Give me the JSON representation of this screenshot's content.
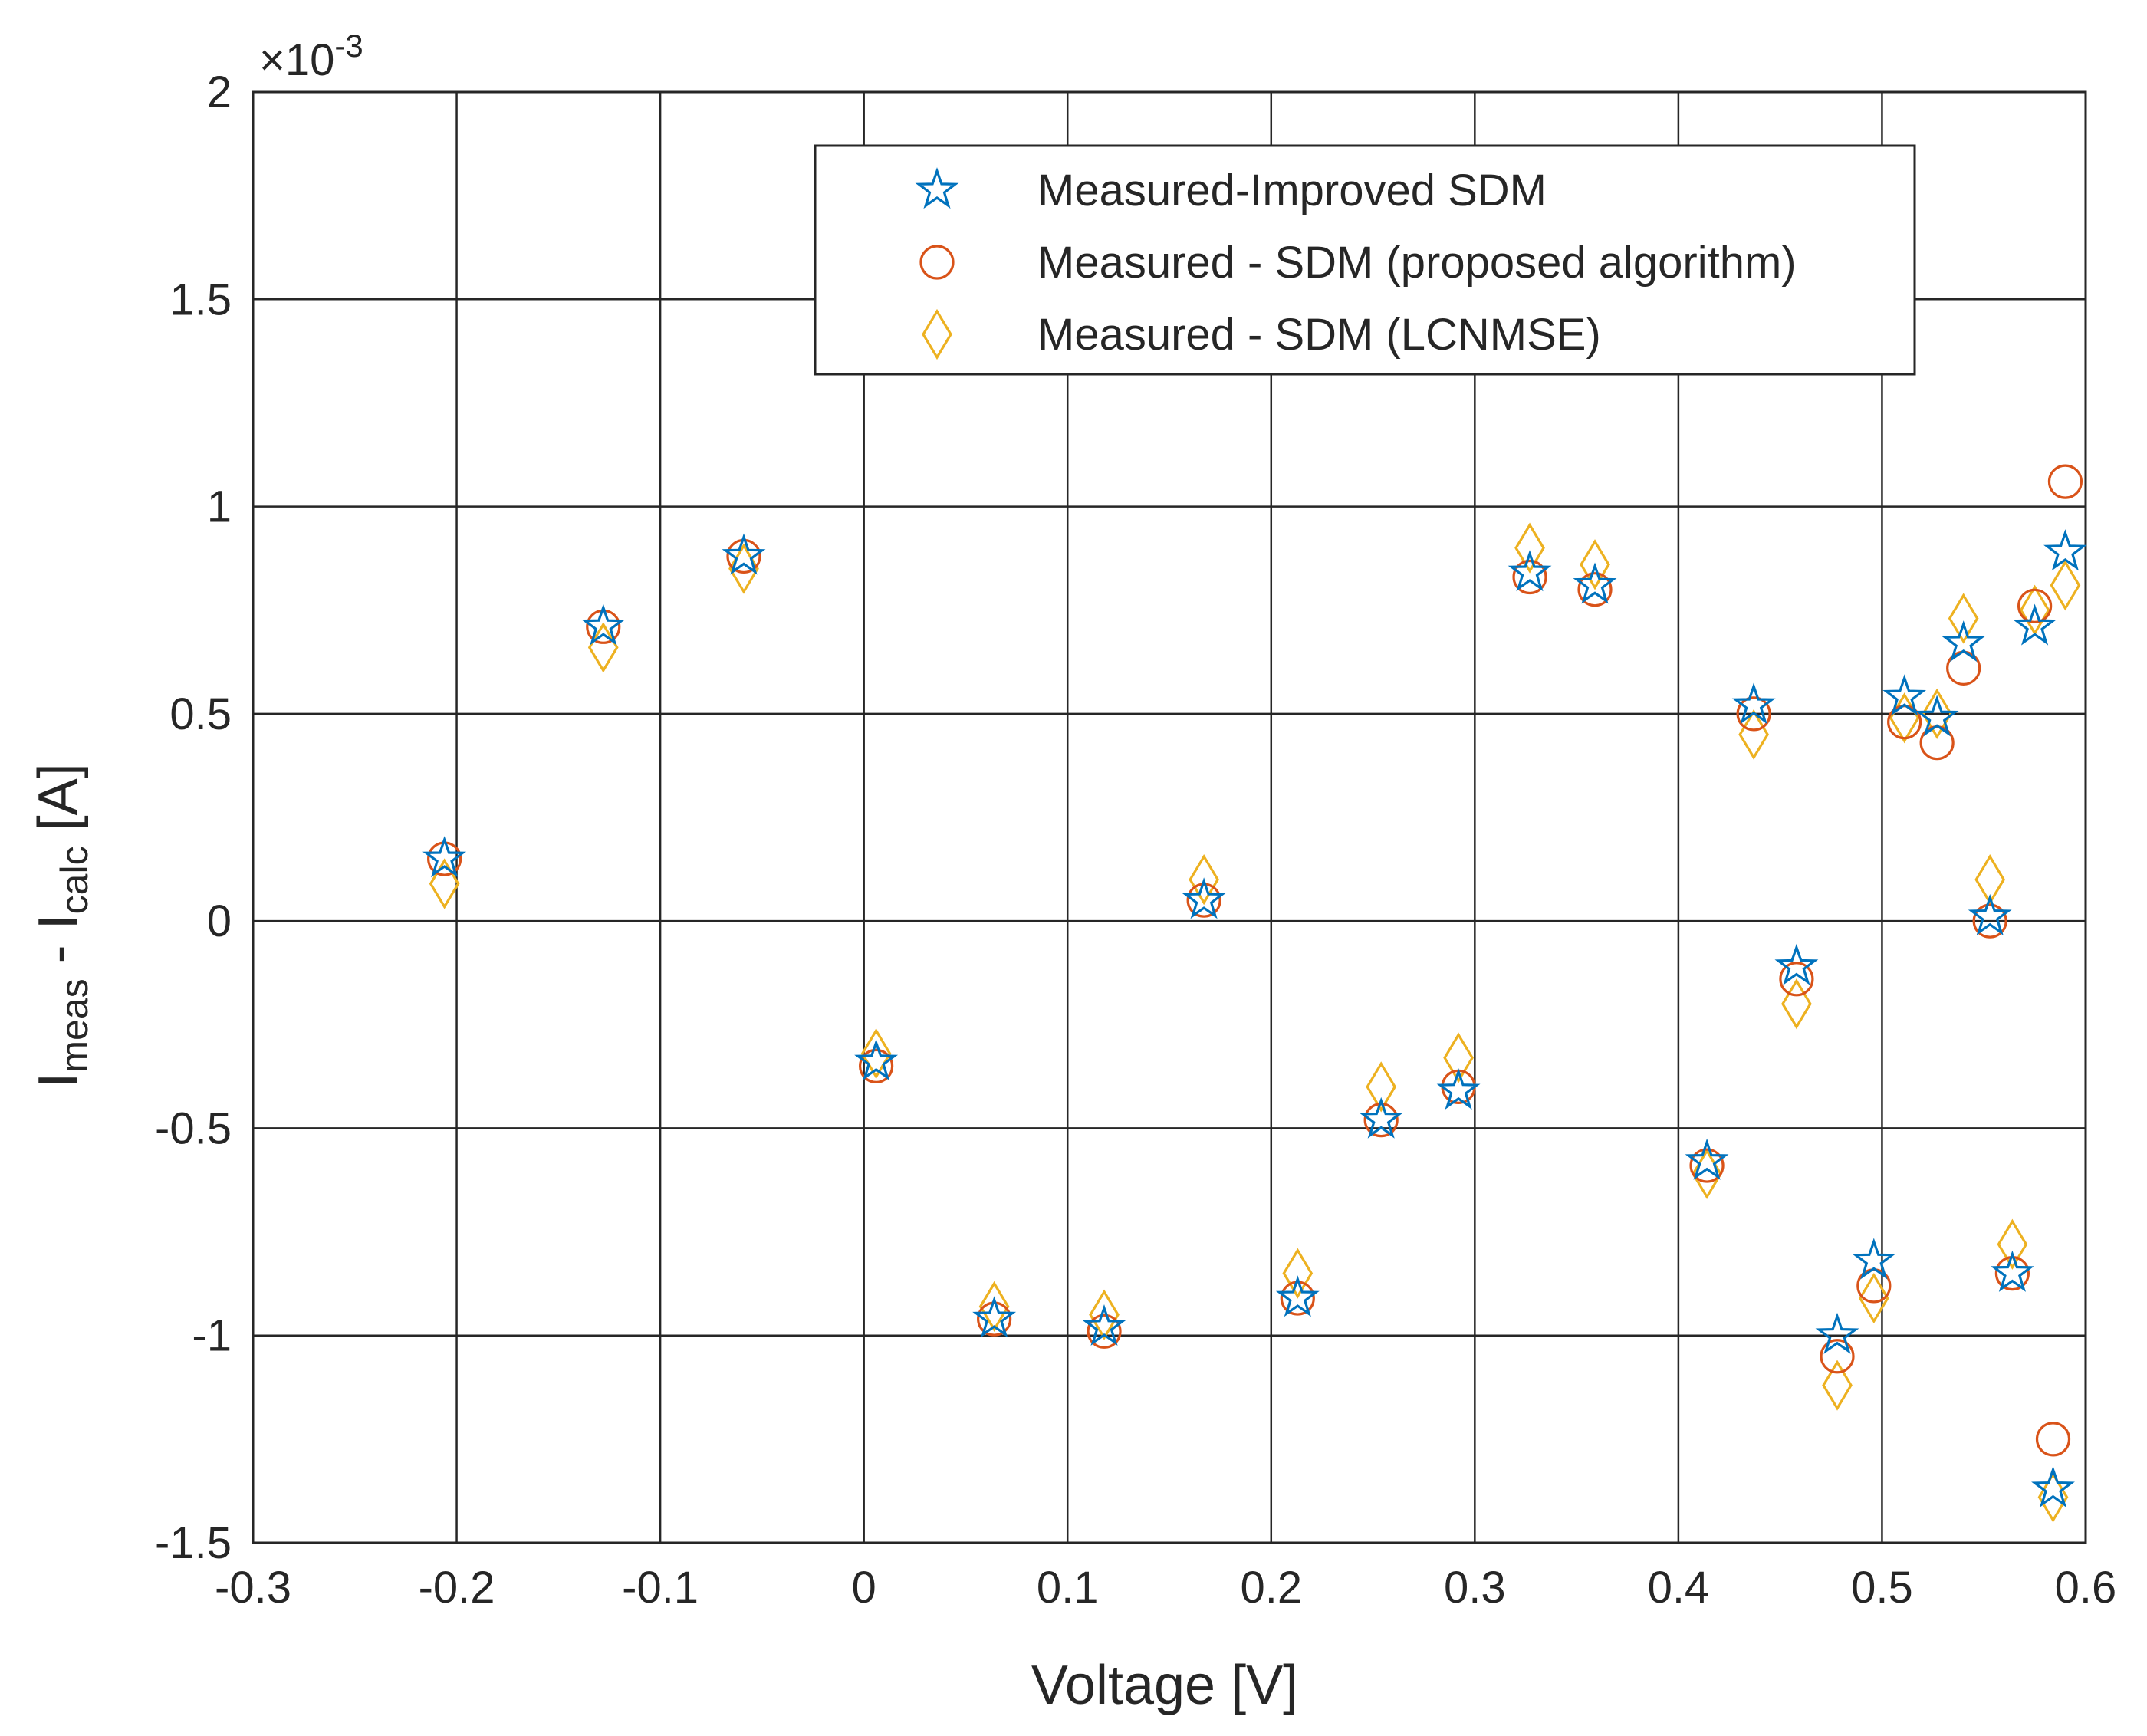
{
  "chart_data": {
    "type": "scatter",
    "title": "",
    "xlabel": "Voltage [V]",
    "ylabel": {
      "base": "I",
      "sub1": "meas",
      "mid": " - I",
      "sub2": "calc",
      "unit": " [A]"
    },
    "exponent_label": {
      "prefix": "×10",
      "power": "-3"
    },
    "xlim": [
      -0.3,
      0.6
    ],
    "ylim": [
      -1.5,
      2
    ],
    "x_ticks": [
      -0.3,
      -0.2,
      -0.1,
      0,
      0.1,
      0.2,
      0.3,
      0.4,
      0.5,
      0.6
    ],
    "x_tick_labels": [
      "-0.3",
      "-0.2",
      "-0.1",
      "0",
      "0.1",
      "0.2",
      "0.3",
      "0.4",
      "0.5",
      "0.6"
    ],
    "y_ticks": [
      -1.5,
      -1,
      -0.5,
      0,
      0.5,
      1,
      1.5,
      2
    ],
    "y_tick_labels": [
      "-1.5",
      "-1",
      "-0.5",
      "0",
      "0.5",
      "1",
      "1.5",
      "2"
    ],
    "grid": true,
    "legend_position": "top-right",
    "series": [
      {
        "name": "Measured-Improved SDM",
        "marker": "star",
        "color": "#0072BD",
        "points": [
          [
            -0.206,
            0.15
          ],
          [
            -0.128,
            0.71
          ],
          [
            -0.059,
            0.88
          ],
          [
            0.006,
            -0.34
          ],
          [
            0.064,
            -0.96
          ],
          [
            0.118,
            -0.98
          ],
          [
            0.167,
            0.05
          ],
          [
            0.213,
            -0.91
          ],
          [
            0.254,
            -0.48
          ],
          [
            0.292,
            -0.41
          ],
          [
            0.327,
            0.84
          ],
          [
            0.359,
            0.81
          ],
          [
            0.414,
            -0.58
          ],
          [
            0.437,
            0.52
          ],
          [
            0.458,
            -0.11
          ],
          [
            0.478,
            -1.0
          ],
          [
            0.496,
            -0.82
          ],
          [
            0.511,
            0.54
          ],
          [
            0.527,
            0.49
          ],
          [
            0.54,
            0.67
          ],
          [
            0.553,
            0.01
          ],
          [
            0.564,
            -0.85
          ],
          [
            0.575,
            0.71
          ],
          [
            0.584,
            -1.37
          ],
          [
            0.59,
            0.89
          ]
        ]
      },
      {
        "name": "Measured - SDM (proposed algorithm)",
        "marker": "circle",
        "color": "#D95319",
        "points": [
          [
            -0.206,
            0.15
          ],
          [
            -0.128,
            0.71
          ],
          [
            -0.059,
            0.88
          ],
          [
            0.006,
            -0.35
          ],
          [
            0.064,
            -0.96
          ],
          [
            0.118,
            -0.99
          ],
          [
            0.167,
            0.05
          ],
          [
            0.213,
            -0.91
          ],
          [
            0.254,
            -0.48
          ],
          [
            0.292,
            -0.4
          ],
          [
            0.327,
            0.83
          ],
          [
            0.359,
            0.8
          ],
          [
            0.414,
            -0.59
          ],
          [
            0.437,
            0.5
          ],
          [
            0.458,
            -0.14
          ],
          [
            0.478,
            -1.05
          ],
          [
            0.496,
            -0.88
          ],
          [
            0.511,
            0.48
          ],
          [
            0.527,
            0.43
          ],
          [
            0.54,
            0.61
          ],
          [
            0.553,
            0.0
          ],
          [
            0.564,
            -0.85
          ],
          [
            0.575,
            0.76
          ],
          [
            0.584,
            -1.25
          ],
          [
            0.59,
            1.06
          ]
        ]
      },
      {
        "name": "Measured - SDM (LCNMSE)",
        "marker": "diamond",
        "color": "#EDB120",
        "points": [
          [
            -0.206,
            0.09
          ],
          [
            -0.128,
            0.66
          ],
          [
            -0.059,
            0.85
          ],
          [
            0.006,
            -0.32
          ],
          [
            0.064,
            -0.93
          ],
          [
            0.118,
            -0.95
          ],
          [
            0.167,
            0.1
          ],
          [
            0.213,
            -0.85
          ],
          [
            0.254,
            -0.4
          ],
          [
            0.292,
            -0.33
          ],
          [
            0.327,
            0.9
          ],
          [
            0.359,
            0.86
          ],
          [
            0.414,
            -0.61
          ],
          [
            0.437,
            0.45
          ],
          [
            0.458,
            -0.2
          ],
          [
            0.478,
            -1.12
          ],
          [
            0.496,
            -0.91
          ],
          [
            0.511,
            0.49
          ],
          [
            0.527,
            0.5
          ],
          [
            0.54,
            0.73
          ],
          [
            0.553,
            0.1
          ],
          [
            0.564,
            -0.78
          ],
          [
            0.575,
            0.75
          ],
          [
            0.584,
            -1.39
          ],
          [
            0.59,
            0.81
          ]
        ]
      }
    ]
  }
}
